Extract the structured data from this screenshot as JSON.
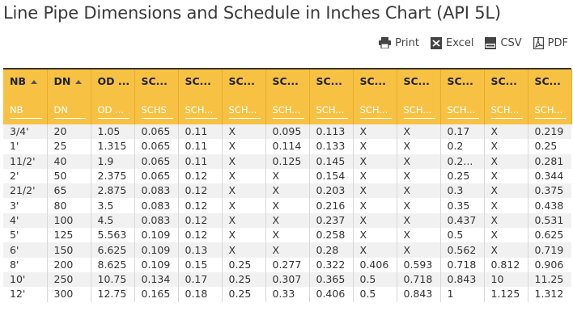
{
  "title": "Line Pipe Dimensions and Schedule in Inches Chart (API 5L)",
  "toolbar": [
    {
      "label": "Print",
      "icon": "print-icon"
    },
    {
      "label": "Excel",
      "icon": "excel-icon"
    },
    {
      "label": "CSV",
      "icon": "csv-icon"
    },
    {
      "label": "PDF",
      "icon": "pdf-icon"
    }
  ],
  "headers": [
    "NB",
    "DN",
    "OD ...",
    "SC...",
    "SC...",
    "SC...",
    "SC...",
    "SC...",
    "SC...",
    "SC...",
    "SC...",
    "SC...",
    "SC..."
  ],
  "sortable": [
    true,
    true,
    false,
    false,
    false,
    false,
    false,
    false,
    false,
    false,
    false,
    false,
    false
  ],
  "filters": [
    "NB",
    "DN",
    "OD ...",
    "SCHS",
    "SCH...",
    "SCH...",
    "SCH...",
    "SCH...",
    "SCH...",
    "SCH...",
    "SCH...",
    "SCH...",
    "SCH..."
  ],
  "rows": [
    [
      "3/4'",
      "20",
      "1.05",
      "0.065",
      "0.11",
      "X",
      "0.095",
      "0.113",
      "X",
      "X",
      "0.17",
      "X",
      "0.219"
    ],
    [
      "1'",
      "25",
      "1.315",
      "0.065",
      "0.11",
      "X",
      "0.114",
      "0.133",
      "X",
      "X",
      "0.2",
      "X",
      "0.25"
    ],
    [
      "11/2'",
      "40",
      "1.9",
      "0.065",
      "0.11",
      "X",
      "0.125",
      "0.145",
      "X",
      "X",
      "0.2...",
      "X",
      "0.281"
    ],
    [
      "2'",
      "50",
      "2.375",
      "0.065",
      "0.12",
      "X",
      "X",
      "0.154",
      "X",
      "X",
      "0.25",
      "X",
      "0.344"
    ],
    [
      "21/2'",
      "65",
      "2.875",
      "0.083",
      "0.12",
      "X",
      "X",
      "0.203",
      "X",
      "X",
      "0.3",
      "X",
      "0.375"
    ],
    [
      "3'",
      "80",
      "3.5",
      "0.083",
      "0.12",
      "X",
      "X",
      "0.216",
      "X",
      "X",
      "0.35",
      "X",
      "0.438"
    ],
    [
      "4'",
      "100",
      "4.5",
      "0.083",
      "0.12",
      "X",
      "X",
      "0.237",
      "X",
      "X",
      "0.437",
      "X",
      "0.531"
    ],
    [
      "5'",
      "125",
      "5.563",
      "0.109",
      "0.12",
      "X",
      "X",
      "0.258",
      "X",
      "X",
      "0.5",
      "X",
      "0.625"
    ],
    [
      "6'",
      "150",
      "6.625",
      "0.109",
      "0.13",
      "X",
      "X",
      "0.28",
      "X",
      "X",
      "0.562",
      "X",
      "0.719"
    ],
    [
      "8'",
      "200",
      "8.625",
      "0.109",
      "0.15",
      "0.25",
      "0.277",
      "0.322",
      "0.406",
      "0.593",
      "0.718",
      "0.812",
      "0.906"
    ],
    [
      "10'",
      "250",
      "10.75",
      "0.134",
      "0.17",
      "0.25",
      "0.307",
      "0.365",
      "0.5",
      "0.718",
      "0.843",
      "10",
      "11.25"
    ],
    [
      "12'",
      "300",
      "12.75",
      "0.165",
      "0.18",
      "0.25",
      "0.33",
      "0.406",
      "0.5",
      "0.843",
      "1",
      "1.125",
      "1.312"
    ]
  ],
  "colors": {
    "header_bg": "#f7c244",
    "row_alt": "#f1f1f1",
    "title": "#3a3a3a"
  }
}
